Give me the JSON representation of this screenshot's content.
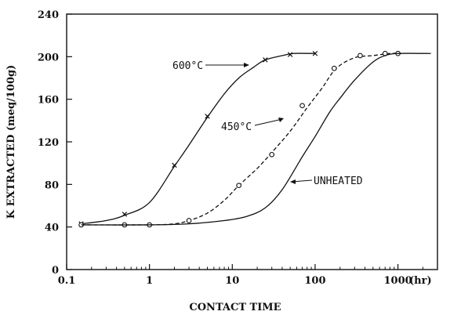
{
  "chart_data": {
    "type": "line",
    "title": "",
    "xlabel": "CONTACT TIME",
    "ylabel": "K EXTRACTED (meq/100g)",
    "x_scale": "log",
    "xlim": [
      0.1,
      3000
    ],
    "ylim": [
      0,
      240
    ],
    "x_ticks": [
      0.1,
      1,
      10,
      100,
      1000
    ],
    "x_tick_labels": [
      "0.1",
      "1",
      "10",
      "100",
      "1000"
    ],
    "x_unit_label": "(hr)",
    "y_ticks": [
      0,
      40,
      80,
      120,
      160,
      200,
      240
    ],
    "grid": false,
    "legend": "none",
    "series": [
      {
        "name": "600°C",
        "line_style": "solid",
        "marker": "x",
        "curve": [
          [
            0.15,
            43
          ],
          [
            0.3,
            46
          ],
          [
            0.5,
            51
          ],
          [
            1,
            63
          ],
          [
            2,
            97
          ],
          [
            3,
            117
          ],
          [
            5,
            143
          ],
          [
            8,
            165
          ],
          [
            12,
            180
          ],
          [
            18,
            190
          ],
          [
            25,
            197
          ],
          [
            40,
            201
          ],
          [
            55,
            203
          ],
          [
            100,
            203
          ]
        ],
        "points": [
          [
            0.15,
            43
          ],
          [
            0.5,
            52
          ],
          [
            2,
            98
          ],
          [
            5,
            144
          ],
          [
            25,
            197
          ],
          [
            50,
            202
          ],
          [
            100,
            203
          ]
        ]
      },
      {
        "name": "450°C",
        "line_style": "dashed",
        "marker": "o",
        "curve": [
          [
            0.15,
            42
          ],
          [
            1,
            42
          ],
          [
            2,
            43
          ],
          [
            3,
            46
          ],
          [
            5,
            53
          ],
          [
            8,
            65
          ],
          [
            12,
            79
          ],
          [
            20,
            95
          ],
          [
            30,
            110
          ],
          [
            50,
            130
          ],
          [
            80,
            152
          ],
          [
            120,
            170
          ],
          [
            180,
            189
          ],
          [
            300,
            199
          ],
          [
            500,
            201
          ],
          [
            800,
            203
          ],
          [
            1100,
            203
          ]
        ],
        "points": [
          [
            0.15,
            42
          ],
          [
            0.5,
            42
          ],
          [
            1,
            42
          ],
          [
            3,
            46
          ],
          [
            12,
            79
          ],
          [
            30,
            108
          ],
          [
            70,
            154
          ],
          [
            170,
            189
          ],
          [
            350,
            201
          ],
          [
            700,
            203
          ],
          [
            1000,
            203
          ]
        ]
      },
      {
        "name": "UNHEATED",
        "line_style": "solid",
        "marker": "none",
        "curve": [
          [
            0.15,
            42
          ],
          [
            1,
            42
          ],
          [
            3,
            43
          ],
          [
            8,
            46
          ],
          [
            15,
            50
          ],
          [
            25,
            58
          ],
          [
            40,
            75
          ],
          [
            70,
            106
          ],
          [
            100,
            125
          ],
          [
            150,
            148
          ],
          [
            200,
            161
          ],
          [
            300,
            178
          ],
          [
            500,
            195
          ],
          [
            700,
            201
          ],
          [
            1000,
            203
          ],
          [
            2500,
            203
          ]
        ],
        "points": []
      }
    ],
    "annotations": [
      {
        "text": "600°C",
        "series": "600°C"
      },
      {
        "text": "450°C",
        "series": "450°C"
      },
      {
        "text": "UNHEATED",
        "series": "UNHEATED"
      }
    ]
  }
}
